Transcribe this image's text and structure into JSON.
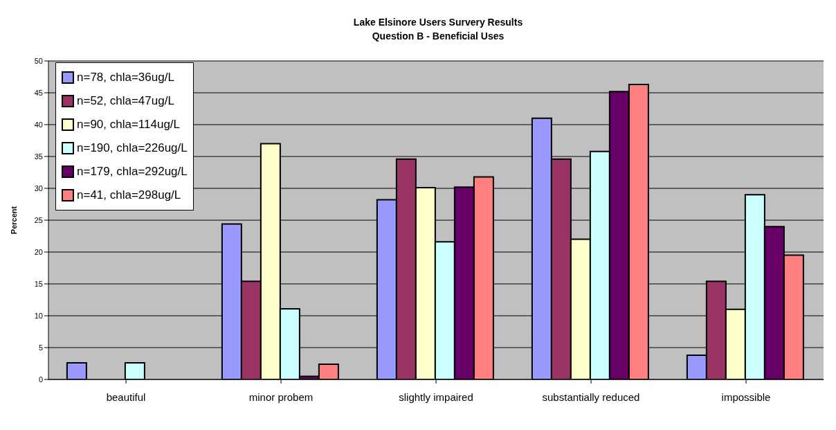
{
  "chart_data": {
    "type": "bar",
    "title": "Lake Elsinore Users Survery Results",
    "subtitle": "Question B - Beneficial Uses",
    "ylabel": "Percent",
    "categories": [
      "beautiful",
      "minor probem",
      "slightly impaired",
      "substantially reduced",
      "impossible"
    ],
    "series": [
      {
        "name": "n=78, chla=36ug/L",
        "color": "#9999ff",
        "values": [
          2.6,
          24.4,
          28.2,
          41.0,
          3.8
        ]
      },
      {
        "name": "n=52, chla=47ug/L",
        "color": "#993366",
        "values": [
          0,
          15.4,
          34.6,
          34.6,
          15.4
        ]
      },
      {
        "name": "n=90, chla=114ug/L",
        "color": "#ffffcc",
        "values": [
          0,
          37.0,
          30.1,
          22.0,
          11.0
        ]
      },
      {
        "name": "n=190, chla=226ug/L",
        "color": "#ccffff",
        "values": [
          2.6,
          11.1,
          21.6,
          35.8,
          29.0
        ]
      },
      {
        "name": "n=179, chla=292ug/L",
        "color": "#660066",
        "values": [
          0,
          0.5,
          30.2,
          45.2,
          24.0
        ]
      },
      {
        "name": "n=41, chla=298ug/L",
        "color": "#ff8080",
        "values": [
          0,
          2.4,
          31.8,
          46.3,
          19.5
        ]
      }
    ],
    "ylim": [
      0,
      50
    ],
    "yticks": [
      0,
      5,
      10,
      15,
      20,
      25,
      30,
      35,
      40,
      45,
      50
    ],
    "grid": "y",
    "legend": "top left"
  }
}
